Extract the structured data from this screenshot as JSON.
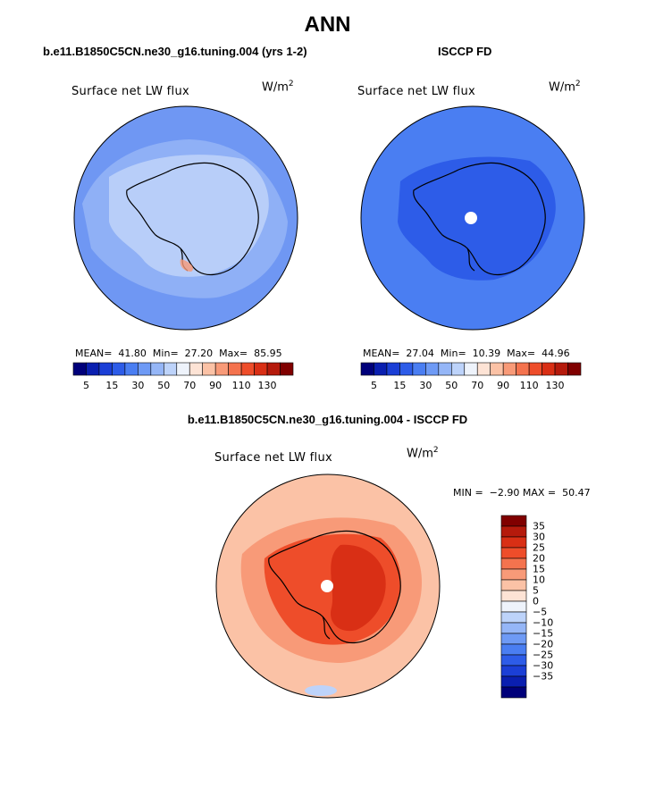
{
  "figure": {
    "title": "ANN",
    "diff_title": "b.e11.B1850C5CN.ne30_g16.tuning.004 - ISCCP FD"
  },
  "panels": [
    {
      "title": "b.e11.B1850C5CN.ne30_g16.tuning.004 (yrs 1-2)",
      "variable": "Surface net LW flux",
      "units_base": "W/m",
      "units_exp": "2",
      "stats": {
        "mean_label": "MEAN=",
        "mean": "41.80",
        "min_label": "Min=",
        "min": "27.20",
        "max_label": "Max=",
        "max": "85.95"
      }
    },
    {
      "title": "ISCCP FD",
      "variable": "Surface net LW flux",
      "units_base": "W/m",
      "units_exp": "2",
      "stats": {
        "mean_label": "MEAN=",
        "mean": "27.04",
        "min_label": "Min=",
        "min": "10.39",
        "max_label": "Max=",
        "max": "44.96"
      }
    },
    {
      "title": "b.e11.B1850C5CN.ne30_g16.tuning.004 - ISCCP FD",
      "variable": "Surface net LW flux",
      "units_base": "W/m",
      "units_exp": "2",
      "stats_text": "MIN =  −2.90 MAX =  50.47"
    }
  ],
  "colorbar_abs": {
    "colors": [
      "#00007a",
      "#0a1fb0",
      "#1b3fd6",
      "#2d5ce8",
      "#4a7ef2",
      "#6e9af5",
      "#95b6f7",
      "#bdd3fa",
      "#eef3fb",
      "#fde3d5",
      "#fbc2a6",
      "#f89a78",
      "#f4734e",
      "#ee4d2a",
      "#d92f15",
      "#b51a0c",
      "#800000"
    ],
    "ticks": [
      "5",
      "15",
      "30",
      "50",
      "70",
      "90",
      "110",
      "130"
    ]
  },
  "colorbar_diff": {
    "colors": [
      "#800000",
      "#b51a0c",
      "#d92f15",
      "#ee4d2a",
      "#f4734e",
      "#f89a78",
      "#fbc2a6",
      "#fde3d5",
      "#eef3fb",
      "#bdd3fa",
      "#95b6f7",
      "#6e9af5",
      "#4a7ef2",
      "#2d5ce8",
      "#1b3fd6",
      "#0a1fb0",
      "#00007a"
    ],
    "ticks": [
      "35",
      "30",
      "25",
      "20",
      "15",
      "10",
      "5",
      "0",
      "−5",
      "−10",
      "−15",
      "−20",
      "−25",
      "−30",
      "−35"
    ]
  },
  "map_colors": {
    "model_ocean": "#8fb0f6",
    "model_far": "#6f97f3",
    "model_land": "#bcd2fa",
    "obs_ocean": "#4a7ef2",
    "obs_land": "#2d5ce8",
    "diff_ocean": "#fbc2a6",
    "diff_mid": "#f89a78",
    "diff_land": "#ee4d2a",
    "diff_core": "#d92f15",
    "coast": "#000000",
    "pole": "#ffffff"
  }
}
